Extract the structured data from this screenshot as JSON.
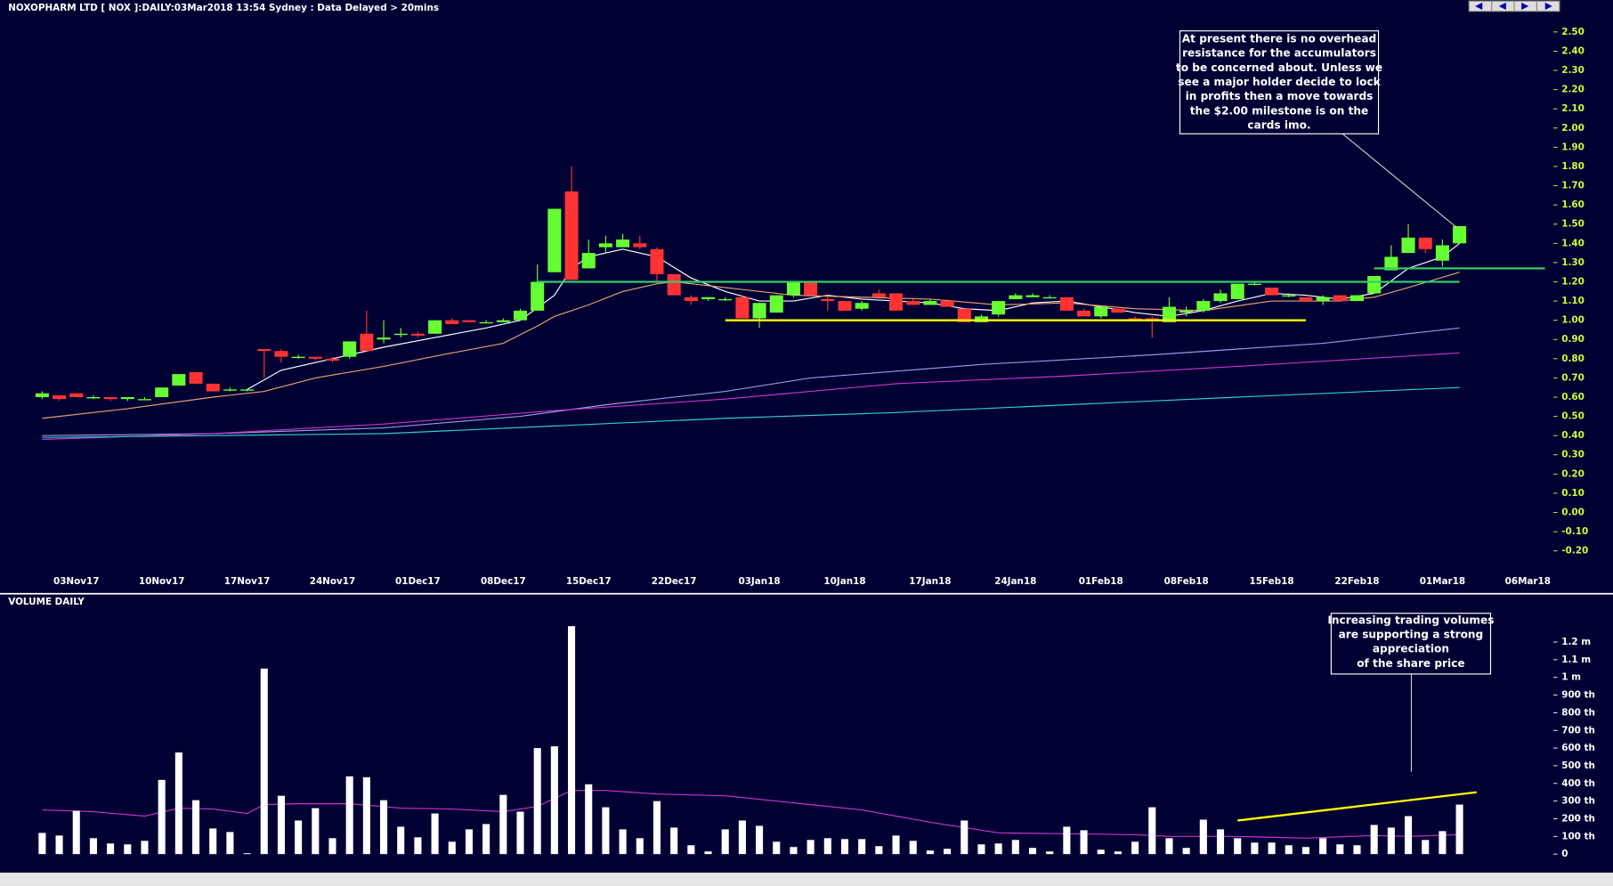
{
  "chart_data": [
    {
      "type": "candlestick",
      "title": "NOXOPHARM LTD [ NOX ]:DAILY:03Mar2018 13:54 Sydney : Data Delayed > 20mins",
      "categories": [
        null,
        null,
        "03Nov17",
        null,
        null,
        null,
        null,
        "10Nov17",
        null,
        null,
        null,
        null,
        "17Nov17",
        null,
        null,
        null,
        null,
        "24Nov17",
        null,
        null,
        null,
        null,
        "01Dec17",
        null,
        null,
        null,
        null,
        "08Dec17",
        null,
        null,
        null,
        null,
        "15Dec17",
        null,
        null,
        null,
        null,
        "22Dec17",
        null,
        null,
        null,
        null,
        "03Jan18",
        null,
        null,
        null,
        null,
        "10Jan18",
        null,
        null,
        null,
        null,
        "17Jan18",
        null,
        null,
        null,
        null,
        "24Jan18",
        null,
        null,
        null,
        null,
        "01Feb18",
        null,
        null,
        null,
        null,
        "08Feb18",
        null,
        null,
        null,
        null,
        "15Feb18",
        null,
        null,
        null,
        null,
        "22Feb18",
        null,
        null,
        null,
        null,
        "01Mar18",
        null,
        null,
        null,
        null,
        "06Mar18"
      ],
      "open": [
        0.6,
        0.61,
        0.62,
        0.6,
        0.6,
        0.59,
        0.59,
        0.6,
        0.66,
        0.73,
        0.67,
        0.64,
        0.64,
        0.85,
        0.84,
        0.81,
        0.81,
        0.8,
        0.81,
        0.93,
        0.9,
        0.93,
        0.93,
        0.93,
        1.0,
        1.0,
        0.99,
        0.99,
        1.0,
        1.05,
        1.25,
        1.67,
        1.27,
        1.38,
        1.38,
        1.4,
        1.37,
        1.24,
        1.12,
        1.11,
        1.11,
        1.12,
        1.01,
        1.04,
        1.13,
        1.2,
        1.11,
        1.1,
        1.06,
        1.14,
        1.14,
        1.1,
        1.08,
        1.1,
        1.06,
        0.99,
        1.03,
        1.11,
        1.12,
        1.12,
        1.12,
        1.05,
        1.02,
        1.06,
        1.01,
        1.01,
        0.99,
        1.04,
        1.05,
        1.1,
        1.11,
        1.19,
        1.17,
        1.13,
        1.12,
        1.1,
        1.13,
        1.1,
        1.14,
        1.26,
        1.35,
        1.43,
        1.31,
        1.4,
        null,
        null,
        null,
        null
      ],
      "high": [
        0.63,
        0.61,
        0.62,
        0.61,
        0.6,
        0.6,
        0.6,
        0.65,
        0.72,
        0.73,
        0.67,
        0.65,
        0.64,
        0.85,
        0.85,
        0.82,
        0.81,
        0.81,
        0.89,
        1.05,
        1.0,
        0.96,
        0.94,
        1.0,
        1.01,
        1.0,
        1.0,
        1.01,
        1.06,
        1.29,
        1.58,
        1.8,
        1.42,
        1.44,
        1.45,
        1.44,
        1.38,
        1.24,
        1.13,
        1.12,
        1.12,
        1.13,
        1.09,
        1.13,
        1.2,
        1.2,
        1.13,
        1.1,
        1.1,
        1.16,
        1.14,
        1.11,
        1.11,
        1.11,
        1.06,
        1.03,
        1.1,
        1.14,
        1.14,
        1.13,
        1.12,
        1.06,
        1.07,
        1.07,
        1.02,
        1.02,
        1.12,
        1.07,
        1.11,
        1.16,
        1.19,
        1.2,
        1.17,
        1.14,
        1.12,
        1.13,
        1.13,
        1.13,
        1.23,
        1.39,
        1.5,
        1.43,
        1.42,
        1.49,
        null,
        null,
        null,
        null
      ],
      "low": [
        0.59,
        0.58,
        0.6,
        0.59,
        0.58,
        0.58,
        0.59,
        0.6,
        0.66,
        0.67,
        0.63,
        0.63,
        0.63,
        0.7,
        0.78,
        0.8,
        0.79,
        0.78,
        0.8,
        0.84,
        0.88,
        0.91,
        0.91,
        0.93,
        0.98,
        0.99,
        0.99,
        0.99,
        1.0,
        1.05,
        1.25,
        1.21,
        1.27,
        1.35,
        1.38,
        1.37,
        1.2,
        1.13,
        1.08,
        1.1,
        1.1,
        1.01,
        0.96,
        1.04,
        1.12,
        1.13,
        1.05,
        1.05,
        1.05,
        1.12,
        1.05,
        1.08,
        1.08,
        1.07,
        0.99,
        0.99,
        1.02,
        1.11,
        1.12,
        1.12,
        1.05,
        1.02,
        1.01,
        1.04,
        1.0,
        0.91,
        0.99,
        1.02,
        1.04,
        1.09,
        1.11,
        1.18,
        1.13,
        1.12,
        1.1,
        1.08,
        1.1,
        1.1,
        1.14,
        1.26,
        1.35,
        1.35,
        1.28,
        1.4,
        null,
        null,
        null,
        null
      ],
      "close": [
        0.62,
        0.59,
        0.6,
        0.6,
        0.59,
        0.6,
        0.59,
        0.65,
        0.72,
        0.67,
        0.63,
        0.64,
        0.64,
        0.84,
        0.81,
        0.81,
        0.8,
        0.79,
        0.89,
        0.84,
        0.91,
        0.93,
        0.92,
        1.0,
        0.98,
        0.99,
        0.99,
        1.0,
        1.05,
        1.2,
        1.58,
        1.21,
        1.35,
        1.4,
        1.42,
        1.38,
        1.24,
        1.13,
        1.1,
        1.12,
        1.11,
        1.01,
        1.09,
        1.13,
        1.2,
        1.13,
        1.1,
        1.05,
        1.09,
        1.12,
        1.05,
        1.08,
        1.1,
        1.07,
        0.99,
        1.02,
        1.1,
        1.13,
        1.13,
        1.12,
        1.05,
        1.02,
        1.07,
        1.04,
        1.0,
        1.0,
        1.07,
        1.05,
        1.1,
        1.14,
        1.19,
        1.19,
        1.13,
        1.13,
        1.1,
        1.12,
        1.1,
        1.13,
        1.23,
        1.33,
        1.43,
        1.37,
        1.39,
        1.49,
        null,
        null,
        null,
        null
      ],
      "up_color": "#66ff33",
      "down_color": "#ff3333",
      "ylim": [
        -0.25,
        2.55
      ],
      "yticks": [
        {
          "value": 2.5,
          "label": "2.50"
        },
        {
          "value": 2.4,
          "label": "2.40"
        },
        {
          "value": 2.3,
          "label": "2.30"
        },
        {
          "value": 2.2,
          "label": "2.20"
        },
        {
          "value": 2.1,
          "label": "2.10"
        },
        {
          "value": 2.0,
          "label": "2.00"
        },
        {
          "value": 1.9,
          "label": "1.90"
        },
        {
          "value": 1.8,
          "label": "1.80"
        },
        {
          "value": 1.7,
          "label": "1.70"
        },
        {
          "value": 1.6,
          "label": "1.60"
        },
        {
          "value": 1.5,
          "label": "1.50"
        },
        {
          "value": 1.4,
          "label": "1.40"
        },
        {
          "value": 1.3,
          "label": "1.30"
        },
        {
          "value": 1.2,
          "label": "1.20"
        },
        {
          "value": 1.1,
          "label": "1.10"
        },
        {
          "value": 1.0,
          "label": "1.00"
        },
        {
          "value": 0.9,
          "label": "0.90"
        },
        {
          "value": 0.8,
          "label": "0.80"
        },
        {
          "value": 0.7,
          "label": "0.70"
        },
        {
          "value": 0.6,
          "label": "0.60"
        },
        {
          "value": 0.5,
          "label": "0.50"
        },
        {
          "value": 0.4,
          "label": "0.40"
        },
        {
          "value": 0.3,
          "label": "0.30"
        },
        {
          "value": 0.2,
          "label": "0.20"
        },
        {
          "value": 0.1,
          "label": "0.10"
        },
        {
          "value": 0,
          "label": "0.00"
        },
        {
          "value": -0.1,
          "label": "-0.10"
        },
        {
          "value": -0.2,
          "label": "-0.20"
        }
      ],
      "tick_color": "#ccff33",
      "lines": [
        {
          "color": "#ffffff",
          "x": [
            12,
            14,
            17,
            20,
            23,
            26,
            28,
            30,
            31,
            32,
            34,
            36,
            38,
            40,
            42,
            44,
            46,
            48,
            50,
            52,
            54,
            56,
            58,
            60,
            62,
            64,
            65,
            66,
            68,
            70,
            72,
            74,
            76,
            78,
            80,
            82,
            83
          ],
          "values": [
            0.64,
            0.74,
            0.8,
            0.86,
            0.91,
            0.96,
            1.0,
            1.13,
            1.27,
            1.33,
            1.37,
            1.33,
            1.22,
            1.15,
            1.1,
            1.1,
            1.13,
            1.11,
            1.1,
            1.09,
            1.06,
            1.05,
            1.09,
            1.1,
            1.07,
            1.04,
            1.03,
            1.02,
            1.05,
            1.1,
            1.14,
            1.13,
            1.11,
            1.14,
            1.27,
            1.33,
            1.4
          ]
        },
        {
          "color": "#e8a070",
          "x": [
            0,
            5,
            10,
            13,
            16,
            20,
            24,
            27,
            29,
            30,
            32,
            34,
            36,
            37,
            40,
            44,
            48,
            52,
            56,
            60,
            64,
            68,
            72,
            76,
            78,
            80,
            83
          ],
          "values": [
            0.49,
            0.54,
            0.6,
            0.63,
            0.7,
            0.76,
            0.83,
            0.88,
            0.97,
            1.02,
            1.08,
            1.15,
            1.19,
            1.2,
            1.17,
            1.13,
            1.12,
            1.11,
            1.08,
            1.09,
            1.06,
            1.05,
            1.1,
            1.1,
            1.12,
            1.17,
            1.25
          ]
        },
        {
          "color": "#9a9ae0",
          "x": [
            0,
            10,
            20,
            28,
            33,
            40,
            45,
            55,
            65,
            75,
            83
          ],
          "values": [
            0.4,
            0.41,
            0.44,
            0.5,
            0.56,
            0.63,
            0.7,
            0.77,
            0.82,
            0.88,
            0.96
          ]
        },
        {
          "color": "#cc33cc",
          "x": [
            0,
            10,
            20,
            30,
            40,
            50,
            60,
            70,
            83
          ],
          "values": [
            0.38,
            0.41,
            0.46,
            0.53,
            0.59,
            0.67,
            0.71,
            0.76,
            0.83
          ]
        },
        {
          "color": "#33cccc",
          "x": [
            0,
            10,
            20,
            30,
            40,
            50,
            60,
            70,
            83
          ],
          "values": [
            0.39,
            0.4,
            0.41,
            0.45,
            0.49,
            0.52,
            0.56,
            0.6,
            0.65
          ]
        }
      ],
      "trend_lines": [
        {
          "color": "#33cc66",
          "x": [
            29,
            83
          ],
          "values": [
            1.2,
            1.2
          ]
        },
        {
          "color": "#33cc66",
          "x": [
            78,
            88
          ],
          "values": [
            1.27,
            1.27
          ]
        },
        {
          "color": "#ffff00",
          "x": [
            40,
            74
          ],
          "values": [
            1.0,
            1.0
          ]
        }
      ],
      "annotation": [
        "At present there is no overhead",
        "resistance for the accumulators",
        "to be concerned about. Unless we",
        "see a major holder decide to lock",
        "in profits then a move towards",
        "the $2.00 milestone is on the",
        "cards imo."
      ]
    },
    {
      "type": "bar",
      "title": "VOLUME DAILY",
      "values": [
        120000,
        105000,
        245000,
        90000,
        60000,
        55000,
        75000,
        420000,
        575000,
        305000,
        145000,
        125000,
        5000,
        1050000,
        330000,
        190000,
        260000,
        90000,
        440000,
        435000,
        305000,
        155000,
        95000,
        230000,
        70000,
        140000,
        170000,
        335000,
        240000,
        600000,
        610000,
        1290000,
        395000,
        265000,
        140000,
        90000,
        300000,
        150000,
        50000,
        15000,
        140000,
        190000,
        160000,
        70000,
        40000,
        80000,
        90000,
        85000,
        85000,
        45000,
        105000,
        75000,
        20000,
        30000,
        190000,
        55000,
        60000,
        80000,
        35000,
        15000,
        155000,
        135000,
        25000,
        15000,
        70000,
        265000,
        90000,
        35000,
        195000,
        140000,
        90000,
        65000,
        65000,
        50000,
        40000,
        90000,
        55000,
        50000,
        165000,
        150000,
        215000,
        80000,
        130000,
        280000
      ],
      "color": "#ffffff",
      "ylim": [
        0,
        1400000
      ],
      "yticks": [
        {
          "value": 0,
          "label": "0"
        },
        {
          "value": 100000,
          "label": "100 th"
        },
        {
          "value": 200000,
          "label": "200 th"
        },
        {
          "value": 300000,
          "label": "300 th"
        },
        {
          "value": 400000,
          "label": "400 th"
        },
        {
          "value": 500000,
          "label": "500 th"
        },
        {
          "value": 600000,
          "label": "600 th"
        },
        {
          "value": 700000,
          "label": "700 th"
        },
        {
          "value": 800000,
          "label": "800 th"
        },
        {
          "value": 900000,
          "label": "900 th"
        },
        {
          "value": 1000000,
          "label": "1 m"
        },
        {
          "value": 1100000,
          "label": "1.1 m"
        },
        {
          "value": 1200000,
          "label": "1.2 m"
        }
      ],
      "tick_color": "#ffffff",
      "lines": [
        {
          "color": "#cc33cc",
          "x": [
            0,
            3,
            6,
            8,
            10,
            12,
            13,
            15,
            18,
            21,
            24,
            27,
            29,
            31,
            33,
            36,
            40,
            44,
            48,
            52,
            56,
            60,
            64,
            66,
            70,
            74,
            78,
            80,
            83
          ],
          "values": [
            250000,
            240000,
            215000,
            260000,
            255000,
            230000,
            280000,
            285000,
            285000,
            260000,
            255000,
            240000,
            270000,
            360000,
            360000,
            340000,
            330000,
            290000,
            250000,
            180000,
            120000,
            115000,
            110000,
            100000,
            100000,
            90000,
            105000,
            100000,
            110000
          ]
        }
      ],
      "trend_lines": [
        {
          "color": "#ffff00",
          "x": [
            70,
            84
          ],
          "values": [
            190000,
            350000
          ]
        }
      ],
      "annotation": [
        "Increasing trading volumes",
        "are supporting a strong",
        "appreciation",
        "of the share price"
      ]
    }
  ]
}
